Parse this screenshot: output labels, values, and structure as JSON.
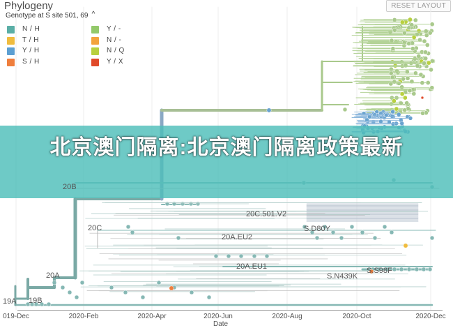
{
  "header": {
    "title": "Phylogeny",
    "reset_label": "RESET LAYOUT"
  },
  "legend": {
    "title": "Genotype at S site 501, 69",
    "toggle_icon": "chevron-up-icon",
    "toggle_glyph": "^",
    "items": [
      {
        "label": "N / H",
        "color": "#5aaea6"
      },
      {
        "label": "T / H",
        "color": "#f0bc3e"
      },
      {
        "label": "Y / H",
        "color": "#5c9fd2"
      },
      {
        "label": "S / H",
        "color": "#ef7e3c"
      },
      {
        "label": "Y / -",
        "color": "#93c96a"
      },
      {
        "label": "N / -",
        "color": "#f3a33d"
      },
      {
        "label": "N / Q",
        "color": "#b8d03f"
      },
      {
        "label": "Y / X",
        "color": "#e04a2a"
      }
    ]
  },
  "banner": {
    "text": "北京澳门隔离:北京澳门隔离政策最新"
  },
  "clades": [
    "20B",
    "20C",
    "20C.501.V2",
    "S.D80Y",
    "20A.EU2",
    "20A.EU1",
    "S.S98F",
    "S.N439K",
    "20A",
    "19A",
    "19B"
  ],
  "axis": {
    "ticks": [
      "019-Dec",
      "2020-Feb",
      "2020-Apr",
      "2020-Jun",
      "2020-Aug",
      "2020-Oct",
      "2020-Dec"
    ],
    "title_fragment": "Date"
  }
}
